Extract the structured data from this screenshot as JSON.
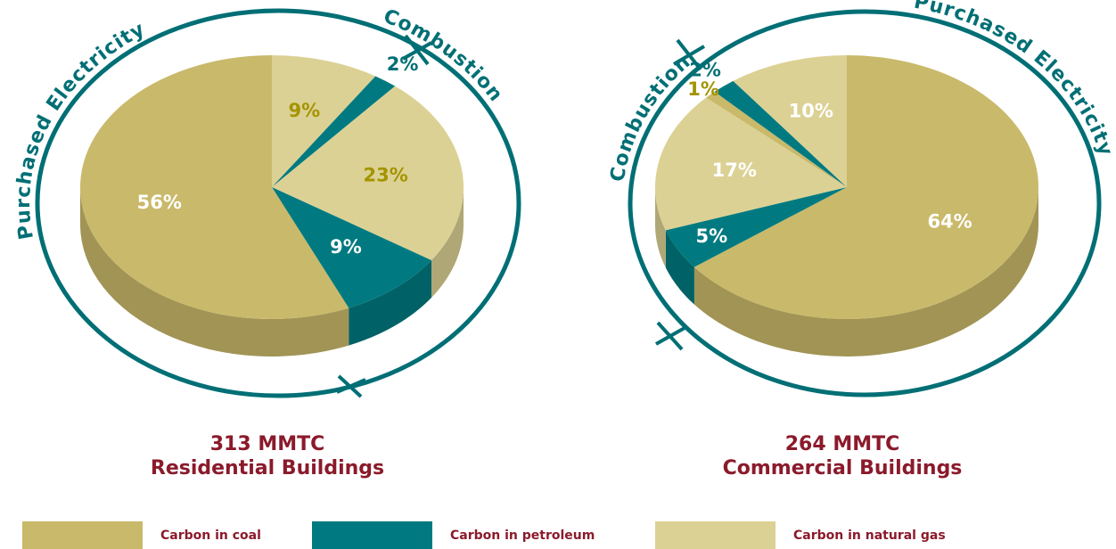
{
  "chart_data": [
    {
      "type": "pie",
      "title": "313 MMTC",
      "subtitle": "Residential Buildings",
      "annotations": [
        "Purchased Electricity",
        "Combustion"
      ],
      "values": [
        9,
        2,
        23,
        9,
        56
      ],
      "value_labels": [
        "9%",
        "2%",
        "23%",
        "9%",
        "56%"
      ],
      "colors": [
        "#dcd194",
        "#007a80",
        "#dcd194",
        "#007a80",
        "#c9b96a"
      ],
      "label_colors": [
        "#a39400",
        "#006f75",
        "#a39400",
        "#ffffff",
        "#ffffff"
      ]
    },
    {
      "type": "pie",
      "title": "264 MMTC",
      "subtitle": "Commercial Buildings",
      "annotations": [
        "Combustion",
        "Purchased Electricity"
      ],
      "values": [
        64,
        5,
        17,
        1,
        2,
        10
      ],
      "value_labels": [
        "64%",
        "5%",
        "17%",
        "1%",
        "2%",
        "10%"
      ],
      "colors": [
        "#c9b96a",
        "#007a80",
        "#dcd194",
        "#c9b96a",
        "#007a80",
        "#dcd194"
      ],
      "label_colors": [
        "#ffffff",
        "#ffffff",
        "#ffffff",
        "#a39400",
        "#006f75",
        "#ffffff"
      ]
    }
  ],
  "legend": {
    "names": [
      "Carbon in coal",
      "Carbon in petroleum",
      "Carbon in natural gas"
    ],
    "colors": [
      "#c9b96a",
      "#007a80",
      "#dcd194"
    ]
  }
}
